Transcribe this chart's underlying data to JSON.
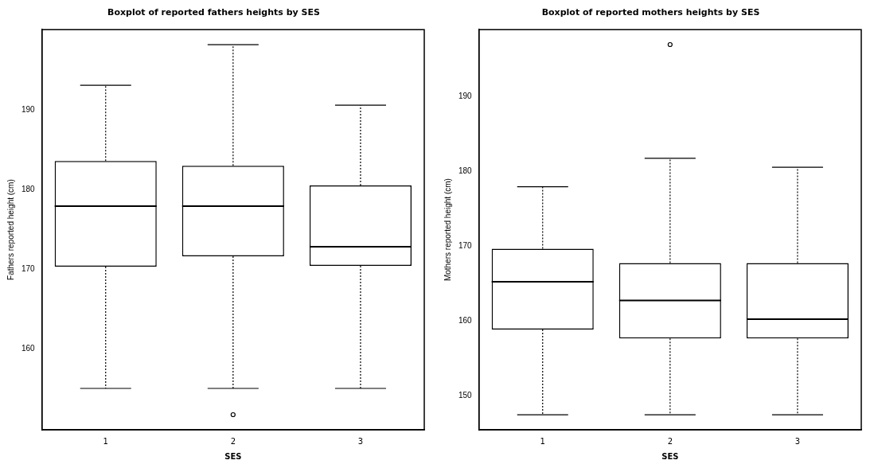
{
  "chart_data": [
    {
      "type": "box",
      "title": "Boxplot of reported fathers heights by SES",
      "xlabel": "SES",
      "ylabel": "Fathers reported height (cm)",
      "categories": [
        "1",
        "2",
        "3"
      ],
      "boxes": [
        {
          "low": 155.0,
          "q1": 170.3,
          "median": 177.9,
          "q3": 183.6,
          "high": 193.1
        },
        {
          "low": 155.0,
          "q1": 171.6,
          "median": 177.9,
          "q3": 183.0,
          "high": 198.2,
          "outliers": [
            151.7
          ]
        },
        {
          "low": 155.0,
          "q1": 170.4,
          "median": 172.8,
          "q3": 180.5,
          "high": 190.6
        }
      ],
      "ylim": [
        149.8,
        200.1
      ],
      "yticks": [
        160,
        170,
        180,
        190
      ],
      "grid": false
    },
    {
      "type": "box",
      "title": "Boxplot of reported mothers heights by SES",
      "xlabel": "SES",
      "ylabel": "Mothers reported height (cm)",
      "categories": [
        "1",
        "2",
        "3"
      ],
      "boxes": [
        {
          "low": 147.4,
          "q1": 158.8,
          "median": 165.2,
          "q3": 169.6,
          "high": 177.9
        },
        {
          "low": 147.4,
          "q1": 157.6,
          "median": 162.7,
          "q3": 167.7,
          "high": 181.7,
          "outliers": [
            196.9
          ]
        },
        {
          "low": 147.4,
          "q1": 157.6,
          "median": 160.2,
          "q3": 167.7,
          "high": 180.5
        }
      ],
      "ylim": [
        145.4,
        198.9
      ],
      "yticks": [
        150,
        160,
        170,
        180,
        190
      ],
      "grid": false
    }
  ]
}
